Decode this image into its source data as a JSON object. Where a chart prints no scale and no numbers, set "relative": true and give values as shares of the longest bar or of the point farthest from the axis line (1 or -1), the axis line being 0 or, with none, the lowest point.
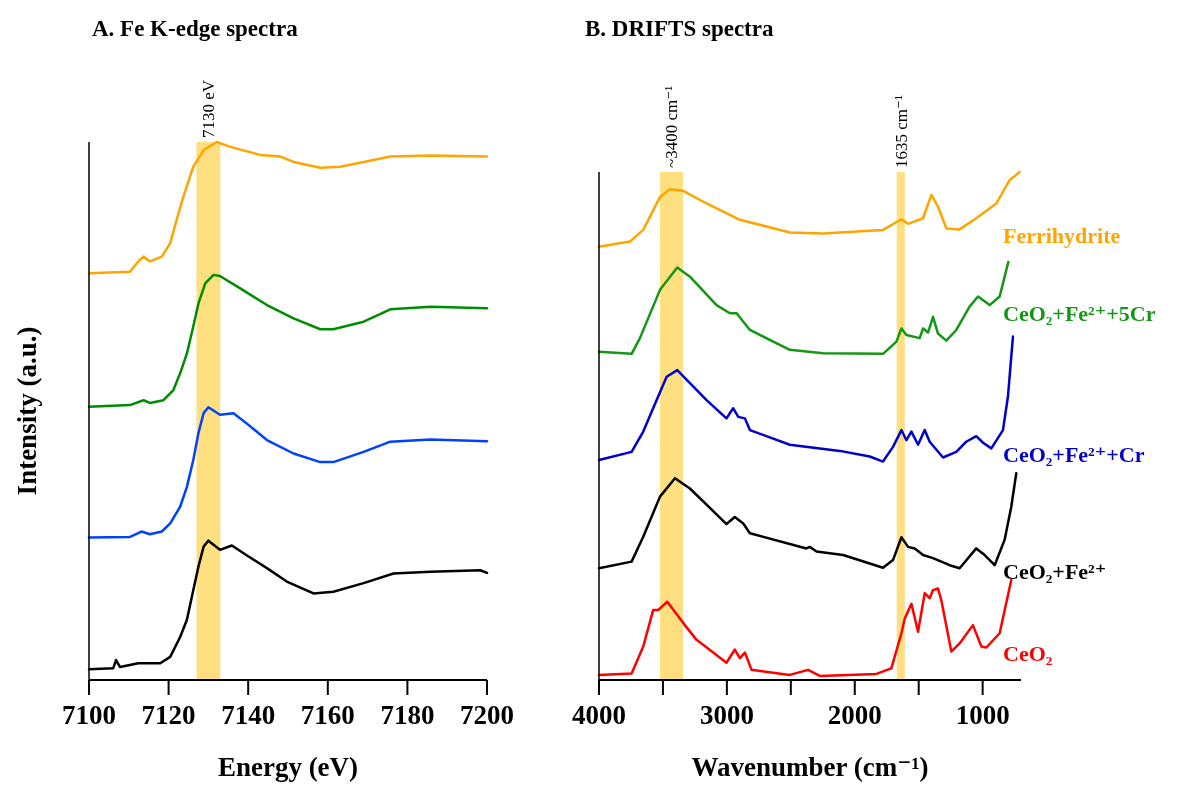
{
  "chart_data": [
    {
      "type": "line",
      "title": "A. Fe K-edge spectra",
      "xlabel": "Energy (eV)",
      "ylabel": "Intensity (a.u.)",
      "relative": true,
      "xlim": [
        7100,
        7200
      ],
      "xticks": [
        7100,
        7120,
        7140,
        7160,
        7180,
        7200
      ],
      "bands": [
        {
          "axis": "x",
          "from": 7127,
          "to": 7133,
          "label": "7130 eV",
          "color": "#ffdf80"
        }
      ],
      "series": [
        {
          "color": "#ffa500",
          "x": [
            7100,
            7110.3,
            7112.4,
            7113.7,
            7115.3,
            7118.3,
            7120.4,
            7122.0,
            7123.7,
            7126.2,
            7128.8,
            7132.1,
            7135.5,
            7143.0,
            7148.0,
            7151.4,
            7158.1,
            7163.1,
            7169.0,
            7175.7,
            7185.8,
            7200
          ],
          "values": [
            0.756,
            0.759,
            0.778,
            0.787,
            0.778,
            0.787,
            0.812,
            0.855,
            0.898,
            0.954,
            0.985,
            1.0,
            0.991,
            0.976,
            0.973,
            0.963,
            0.952,
            0.954,
            0.963,
            0.973,
            0.975,
            0.973
          ]
        },
        {
          "color": "#008c00",
          "x": [
            7100,
            7110.3,
            7113.7,
            7115.3,
            7118.7,
            7121.2,
            7122.9,
            7124.6,
            7126.2,
            7127.5,
            7129.2,
            7131.3,
            7132.9,
            7138.0,
            7144.7,
            7151.4,
            7158.1,
            7161.4,
            7169.0,
            7175.7,
            7185.8,
            7200
          ],
          "values": [
            0.508,
            0.511,
            0.52,
            0.515,
            0.52,
            0.539,
            0.57,
            0.607,
            0.657,
            0.7,
            0.737,
            0.753,
            0.751,
            0.728,
            0.697,
            0.672,
            0.652,
            0.652,
            0.666,
            0.689,
            0.694,
            0.691
          ]
        },
        {
          "color": "#0040ff",
          "x": [
            7100,
            7110.3,
            7113.2,
            7115.3,
            7118.3,
            7120.4,
            7122.9,
            7124.6,
            7126.2,
            7127.5,
            7128.8,
            7130.0,
            7132.9,
            7136.3,
            7139.6,
            7144.7,
            7151.4,
            7158.1,
            7161.4,
            7169.0,
            7175.7,
            7185.8,
            7200
          ],
          "values": [
            0.265,
            0.266,
            0.276,
            0.271,
            0.276,
            0.291,
            0.322,
            0.359,
            0.409,
            0.459,
            0.496,
            0.507,
            0.493,
            0.496,
            0.477,
            0.446,
            0.421,
            0.405,
            0.405,
            0.424,
            0.443,
            0.447,
            0.444
          ]
        },
        {
          "color": "#000000",
          "x": [
            7100,
            7106.1,
            7106.8,
            7107.8,
            7112.4,
            7117.9,
            7120.4,
            7122.9,
            7124.6,
            7126.2,
            7127.5,
            7128.8,
            7130.0,
            7132.9,
            7135.9,
            7139.6,
            7144.7,
            7149.7,
            7156.4,
            7161.4,
            7169.0,
            7176.5,
            7185.8,
            7198.3,
            7200
          ],
          "values": [
            0.02,
            0.022,
            0.037,
            0.024,
            0.031,
            0.031,
            0.043,
            0.08,
            0.112,
            0.167,
            0.211,
            0.248,
            0.259,
            0.242,
            0.25,
            0.232,
            0.208,
            0.183,
            0.161,
            0.164,
            0.18,
            0.198,
            0.201,
            0.204,
            0.199
          ]
        }
      ]
    },
    {
      "type": "line",
      "title": "B. DRIFTS spectra",
      "xlabel": "Wavenumber (cm⁻¹)",
      "relative": true,
      "xlim": [
        4000,
        700
      ],
      "xticks": [
        4000,
        {
          "value": 3500,
          "label": null
        },
        3000,
        {
          "value": 2500,
          "label": null
        },
        2000,
        {
          "value": 1500,
          "label": null
        },
        1000
      ],
      "bands": [
        {
          "axis": "x",
          "from": 3523,
          "to": 3344,
          "label": "~3400 cm⁻¹",
          "color": "#ffdf80"
        },
        {
          "axis": "x",
          "from": 1672,
          "to": 1609,
          "label": "1635 cm⁻¹",
          "color": "#ffdf80"
        }
      ],
      "series": [
        {
          "name": "Ferrihydrite",
          "color": "#ffa500",
          "x": [
            4000,
            3758,
            3654,
            3523,
            3445,
            3341,
            3159,
            2898,
            2508,
            2247,
            1779,
            1635,
            1583,
            1466,
            1401,
            1349,
            1284,
            1180,
            1050,
            893,
            789,
            711
          ],
          "values": [
            0.853,
            0.863,
            0.886,
            0.951,
            0.966,
            0.963,
            0.938,
            0.906,
            0.881,
            0.879,
            0.886,
            0.907,
            0.898,
            0.909,
            0.955,
            0.932,
            0.889,
            0.887,
            0.909,
            0.938,
            0.984,
            1.0
          ]
        },
        {
          "name": "CeO₂+Fe²⁺+5Cr",
          "color": "#159615",
          "x": [
            4000,
            3745,
            3680,
            3523,
            3388,
            3289,
            3081,
            2977,
            2924,
            2820,
            2508,
            2247,
            1779,
            1674,
            1635,
            1596,
            1492,
            1466,
            1427,
            1388,
            1349,
            1284,
            1206,
            1102,
            1036,
            945,
            867,
            799
          ],
          "values": [
            0.646,
            0.642,
            0.673,
            0.768,
            0.812,
            0.794,
            0.738,
            0.722,
            0.722,
            0.689,
            0.65,
            0.643,
            0.642,
            0.666,
            0.692,
            0.679,
            0.673,
            0.692,
            0.684,
            0.715,
            0.682,
            0.668,
            0.689,
            0.735,
            0.755,
            0.738,
            0.755,
            0.823
          ]
        },
        {
          "name": "CeO₂+Fe²⁺+Cr",
          "color": "#0000cc",
          "x": [
            4000,
            3745,
            3654,
            3549,
            3471,
            3388,
            3159,
            3003,
            2951,
            2911,
            2859,
            2820,
            2508,
            2117,
            1883,
            1779,
            1701,
            1635,
            1596,
            1557,
            1505,
            1453,
            1414,
            1310,
            1206,
            1128,
            1050,
            997,
            932,
            841,
            802,
            763
          ],
          "values": [
            0.433,
            0.449,
            0.489,
            0.551,
            0.597,
            0.61,
            0.551,
            0.515,
            0.535,
            0.518,
            0.515,
            0.492,
            0.463,
            0.451,
            0.44,
            0.43,
            0.459,
            0.492,
            0.472,
            0.489,
            0.463,
            0.492,
            0.469,
            0.438,
            0.449,
            0.469,
            0.48,
            0.467,
            0.456,
            0.492,
            0.558,
            0.676
          ]
        },
        {
          "name": "CeO₂+Fe²⁺",
          "color": "#000000",
          "x": [
            4000,
            3745,
            3654,
            3523,
            3406,
            3289,
            3003,
            2938,
            2872,
            2820,
            2378,
            2352,
            2299,
            2091,
            1779,
            1701,
            1635,
            1583,
            1531,
            1466,
            1388,
            1258,
            1180,
            1050,
            984,
            906,
            828,
            776,
            737
          ],
          "values": [
            0.22,
            0.233,
            0.282,
            0.361,
            0.397,
            0.377,
            0.307,
            0.321,
            0.308,
            0.289,
            0.259,
            0.262,
            0.253,
            0.246,
            0.221,
            0.236,
            0.281,
            0.262,
            0.259,
            0.246,
            0.24,
            0.226,
            0.22,
            0.259,
            0.246,
            0.226,
            0.276,
            0.341,
            0.407
          ]
        },
        {
          "name": "CeO₂",
          "color": "#ff0000",
          "x": [
            4000,
            3745,
            3654,
            3576,
            3536,
            3466,
            3341,
            3237,
            3003,
            2938,
            2898,
            2859,
            2807,
            2508,
            2365,
            2273,
            1831,
            1714,
            1635,
            1609,
            1557,
            1505,
            1453,
            1414,
            1388,
            1349,
            1323,
            1245,
            1180,
            1076,
            1010,
            971,
            867,
            776
          ],
          "values": [
            0.01,
            0.013,
            0.066,
            0.138,
            0.138,
            0.154,
            0.112,
            0.079,
            0.034,
            0.06,
            0.043,
            0.054,
            0.02,
            0.01,
            0.02,
            0.008,
            0.012,
            0.023,
            0.092,
            0.121,
            0.15,
            0.095,
            0.171,
            0.161,
            0.177,
            0.18,
            0.157,
            0.056,
            0.072,
            0.108,
            0.066,
            0.064,
            0.092,
            0.197
          ]
        }
      ]
    }
  ]
}
